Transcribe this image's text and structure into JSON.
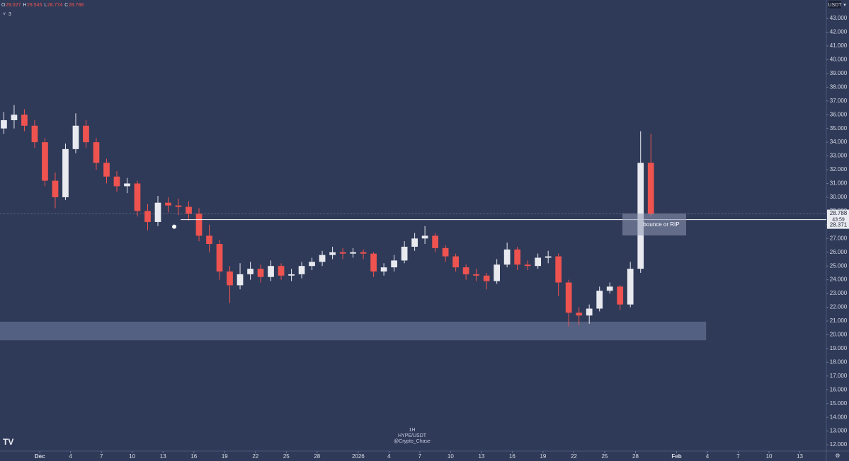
{
  "chart_data": {
    "type": "candlestick",
    "symbol_overlay": [
      "1H",
      "HYPE/USDT",
      "@Crypto_Chase"
    ],
    "currency": "USDT",
    "ohlc_legend": {
      "labels": [
        "O",
        "H",
        "L",
        "C"
      ],
      "open": 29.027,
      "high": 29.545,
      "low": 28.774,
      "close": 28.788
    },
    "indicator_count": 3,
    "last_price": 28.788,
    "countdown": "43:59",
    "level": {
      "price": 28.371,
      "start": "2025-12-14T17:00"
    },
    "zone": {
      "low": 19.6,
      "high": 20.95,
      "end": "2026-02-03T21:00"
    },
    "annotation": "bounce or RIP",
    "up_color": "#e8eaf0",
    "down_color": "#ef5350",
    "x": [
      "2025-11-27",
      "2025-11-28",
      "2025-11-29",
      "2025-11-30",
      "2025-12-01",
      "2025-12-02",
      "2025-12-03",
      "2025-12-04",
      "2025-12-05",
      "2025-12-06",
      "2025-12-07",
      "2025-12-08",
      "2025-12-09",
      "2025-12-10",
      "2025-12-11",
      "2025-12-12",
      "2025-12-13",
      "2025-12-14",
      "2025-12-15",
      "2025-12-16",
      "2025-12-17",
      "2025-12-18",
      "2025-12-19",
      "2025-12-20",
      "2025-12-21",
      "2025-12-22",
      "2025-12-23",
      "2025-12-24",
      "2025-12-25",
      "2025-12-26",
      "2025-12-27",
      "2025-12-28",
      "2025-12-29",
      "2025-12-30",
      "2025-12-31",
      "2026-01-01",
      "2026-01-02",
      "2026-01-03",
      "2026-01-04",
      "2026-01-05",
      "2026-01-06",
      "2026-01-07",
      "2026-01-08",
      "2026-01-09",
      "2026-01-10",
      "2026-01-11",
      "2026-01-12",
      "2026-01-13",
      "2026-01-14",
      "2026-01-15",
      "2026-01-16",
      "2026-01-17",
      "2026-01-18",
      "2026-01-19",
      "2026-01-20",
      "2026-01-21",
      "2026-01-22",
      "2026-01-23",
      "2026-01-24",
      "2026-01-25",
      "2026-01-26",
      "2026-01-27",
      "2026-01-28",
      "2026-01-29"
    ],
    "open": [
      35.0,
      35.6,
      36.0,
      35.2,
      34.0,
      31.2,
      30.0,
      33.5,
      35.2,
      34.0,
      32.5,
      31.5,
      30.8,
      31.0,
      29.0,
      28.2,
      29.6,
      29.4,
      29.3,
      28.8,
      27.2,
      26.6,
      24.6,
      23.6,
      24.4,
      24.8,
      24.2,
      25.0,
      24.3,
      24.4,
      25.0,
      25.3,
      25.8,
      26.0,
      25.9,
      26.0,
      25.9,
      24.6,
      24.9,
      25.4,
      26.4,
      27.0,
      27.2,
      26.3,
      25.7,
      24.9,
      24.4,
      24.3,
      23.9,
      25.1,
      26.2,
      25.1,
      25.0,
      25.6,
      25.7,
      23.8,
      21.6,
      21.4,
      21.9,
      23.2,
      23.5,
      22.2,
      24.8,
      32.5
    ],
    "high": [
      36.2,
      36.7,
      36.4,
      35.6,
      34.3,
      31.8,
      33.9,
      36.1,
      35.6,
      34.3,
      32.8,
      31.9,
      31.4,
      31.2,
      29.5,
      30.1,
      30.0,
      29.9,
      29.7,
      29.2,
      28.0,
      26.9,
      25.0,
      25.2,
      25.3,
      25.1,
      25.4,
      25.2,
      24.8,
      25.3,
      25.6,
      26.1,
      26.4,
      26.3,
      26.3,
      26.2,
      26.0,
      25.2,
      25.8,
      26.8,
      27.4,
      27.9,
      27.4,
      26.5,
      25.9,
      25.1,
      24.8,
      24.5,
      25.5,
      26.7,
      26.4,
      25.4,
      25.9,
      26.1,
      25.9,
      24.0,
      22.0,
      22.2,
      23.5,
      23.8,
      23.6,
      25.3,
      34.8,
      34.6
    ],
    "low": [
      34.6,
      35.0,
      34.8,
      33.6,
      30.8,
      29.2,
      29.8,
      33.2,
      33.6,
      32.0,
      31.0,
      30.4,
      30.3,
      28.6,
      27.6,
      27.9,
      28.9,
      28.7,
      28.3,
      26.8,
      26.0,
      24.0,
      22.3,
      23.3,
      24.0,
      23.8,
      23.9,
      24.0,
      23.9,
      24.1,
      24.7,
      25.0,
      25.5,
      25.5,
      25.6,
      25.5,
      24.2,
      24.3,
      24.6,
      25.2,
      26.1,
      26.6,
      26.0,
      25.3,
      24.6,
      24.0,
      23.9,
      23.3,
      23.7,
      24.9,
      24.7,
      24.7,
      24.8,
      25.2,
      22.8,
      20.6,
      20.7,
      20.8,
      21.7,
      23.0,
      21.8,
      22.0,
      24.5,
      28.6
    ],
    "close": [
      35.6,
      36.0,
      35.2,
      34.0,
      31.2,
      30.0,
      33.5,
      35.2,
      34.0,
      32.5,
      31.5,
      30.8,
      31.0,
      29.0,
      28.2,
      29.6,
      29.4,
      29.3,
      28.8,
      27.2,
      26.6,
      24.6,
      23.6,
      24.4,
      24.8,
      24.2,
      25.0,
      24.3,
      24.4,
      25.0,
      25.3,
      25.8,
      26.0,
      25.9,
      26.0,
      25.9,
      24.6,
      24.9,
      25.4,
      26.4,
      27.0,
      27.2,
      26.3,
      25.7,
      24.9,
      24.4,
      24.3,
      23.9,
      25.1,
      26.2,
      25.1,
      25.0,
      25.6,
      25.7,
      23.8,
      21.6,
      21.4,
      21.9,
      23.2,
      23.5,
      22.2,
      24.8,
      32.5,
      28.788
    ],
    "xlim": [
      "2025-11-27T03:00",
      "2026-02-15T14:00"
    ],
    "xticks": [
      {
        "value": "2025-12-01",
        "label": "Dec"
      },
      {
        "value": "2025-12-04",
        "label": "4"
      },
      {
        "value": "2025-12-07",
        "label": "7"
      },
      {
        "value": "2025-12-10",
        "label": "10"
      },
      {
        "value": "2025-12-13",
        "label": "13"
      },
      {
        "value": "2025-12-16",
        "label": "16"
      },
      {
        "value": "2025-12-19",
        "label": "19"
      },
      {
        "value": "2025-12-22",
        "label": "22"
      },
      {
        "value": "2025-12-25",
        "label": "25"
      },
      {
        "value": "2025-12-28",
        "label": "28"
      },
      {
        "value": "2026-01-01",
        "label": "2026"
      },
      {
        "value": "2026-01-04",
        "label": "4"
      },
      {
        "value": "2026-01-07",
        "label": "7"
      },
      {
        "value": "2026-01-10",
        "label": "10"
      },
      {
        "value": "2026-01-13",
        "label": "13"
      },
      {
        "value": "2026-01-16",
        "label": "16"
      },
      {
        "value": "2026-01-19",
        "label": "19"
      },
      {
        "value": "2026-01-22",
        "label": "22"
      },
      {
        "value": "2026-01-25",
        "label": "25"
      },
      {
        "value": "2026-01-28",
        "label": "28"
      },
      {
        "value": "2026-02-01",
        "label": "Feb"
      },
      {
        "value": "2026-02-04",
        "label": "4"
      },
      {
        "value": "2026-02-07",
        "label": "7"
      },
      {
        "value": "2026-02-10",
        "label": "10"
      },
      {
        "value": "2026-02-13",
        "label": "13"
      }
    ],
    "ylim": [
      11.54,
      44.34
    ],
    "yticks": [
      {
        "value": 12,
        "label": "12.000"
      },
      {
        "value": 13,
        "label": "13.000"
      },
      {
        "value": 14,
        "label": "14.000"
      },
      {
        "value": 15,
        "label": "15.000"
      },
      {
        "value": 16,
        "label": "16.000"
      },
      {
        "value": 17,
        "label": "17.000"
      },
      {
        "value": 18,
        "label": "18.000"
      },
      {
        "value": 19,
        "label": "19.000"
      },
      {
        "value": 20,
        "label": "20.000"
      },
      {
        "value": 21,
        "label": "21.000"
      },
      {
        "value": 22,
        "label": "22.000"
      },
      {
        "value": 23,
        "label": "23.000"
      },
      {
        "value": 24,
        "label": "24.000"
      },
      {
        "value": 25,
        "label": "25.000"
      },
      {
        "value": 26,
        "label": "26.000"
      },
      {
        "value": 27,
        "label": "27.000"
      },
      {
        "value": 28,
        "label": "28.000"
      },
      {
        "value": 29,
        "label": "29.000"
      },
      {
        "value": 30,
        "label": "30.000"
      },
      {
        "value": 31,
        "label": "31.000"
      },
      {
        "value": 32,
        "label": "32.000"
      },
      {
        "value": 33,
        "label": "33.000"
      },
      {
        "value": 34,
        "label": "34.000"
      },
      {
        "value": 35,
        "label": "35.000"
      },
      {
        "value": 36,
        "label": "36.000"
      },
      {
        "value": 37,
        "label": "37.000"
      },
      {
        "value": 38,
        "label": "38.000"
      },
      {
        "value": 39,
        "label": "39.000"
      },
      {
        "value": 40,
        "label": "40.000"
      },
      {
        "value": 41,
        "label": "41.000"
      },
      {
        "value": 42,
        "label": "42.000"
      },
      {
        "value": 43,
        "label": "43.000"
      }
    ]
  }
}
